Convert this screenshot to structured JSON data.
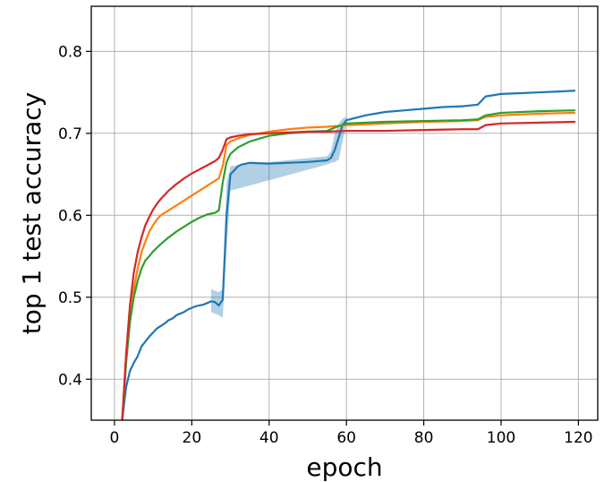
{
  "chart_data": {
    "type": "line",
    "title": "",
    "xlabel": "epoch",
    "ylabel": "top 1 test accuracy",
    "xlim": [
      -6,
      125
    ],
    "ylim": [
      0.35,
      0.855
    ],
    "xticks": [
      0,
      20,
      40,
      60,
      80,
      100,
      120
    ],
    "yticks": [
      0.4,
      0.5,
      0.6,
      0.7,
      0.8
    ],
    "xtick_labels": [
      "0",
      "20",
      "40",
      "60",
      "80",
      "100",
      "120"
    ],
    "ytick_labels": [
      "0.4",
      "0.5",
      "0.6",
      "0.7",
      "0.8"
    ],
    "grid": true,
    "legend": "none",
    "series": [
      {
        "color": "#1f77b4",
        "band": [
          [
            25,
            0.482,
            0.51
          ],
          [
            26,
            0.48,
            0.508
          ],
          [
            27,
            0.478,
            0.506
          ],
          [
            28,
            0.475,
            0.51
          ],
          [
            29,
            0.56,
            0.64
          ],
          [
            30,
            0.63,
            0.66
          ],
          [
            55,
            0.662,
            0.672
          ],
          [
            56,
            0.664,
            0.678
          ],
          [
            57,
            0.665,
            0.7
          ],
          [
            58,
            0.668,
            0.712
          ],
          [
            59,
            0.69,
            0.718
          ],
          [
            60,
            0.712,
            0.72
          ]
        ],
        "points": [
          [
            2,
            0.35
          ],
          [
            3,
            0.39
          ],
          [
            4,
            0.41
          ],
          [
            5,
            0.42
          ],
          [
            6,
            0.428
          ],
          [
            7,
            0.44
          ],
          [
            8,
            0.446
          ],
          [
            9,
            0.452
          ],
          [
            10,
            0.457
          ],
          [
            11,
            0.462
          ],
          [
            12,
            0.465
          ],
          [
            13,
            0.468
          ],
          [
            14,
            0.472
          ],
          [
            15,
            0.474
          ],
          [
            16,
            0.478
          ],
          [
            17,
            0.48
          ],
          [
            18,
            0.482
          ],
          [
            19,
            0.485
          ],
          [
            20,
            0.487
          ],
          [
            21,
            0.489
          ],
          [
            22,
            0.49
          ],
          [
            23,
            0.491
          ],
          [
            24,
            0.493
          ],
          [
            25,
            0.495
          ],
          [
            26,
            0.494
          ],
          [
            27,
            0.49
          ],
          [
            28,
            0.497
          ],
          [
            29,
            0.6
          ],
          [
            30,
            0.65
          ],
          [
            31,
            0.655
          ],
          [
            32,
            0.66
          ],
          [
            33,
            0.662
          ],
          [
            35,
            0.664
          ],
          [
            40,
            0.663
          ],
          [
            45,
            0.664
          ],
          [
            50,
            0.665
          ],
          [
            55,
            0.667
          ],
          [
            56,
            0.67
          ],
          [
            57,
            0.68
          ],
          [
            58,
            0.695
          ],
          [
            59,
            0.71
          ],
          [
            60,
            0.716
          ],
          [
            65,
            0.722
          ],
          [
            70,
            0.726
          ],
          [
            75,
            0.728
          ],
          [
            80,
            0.73
          ],
          [
            85,
            0.732
          ],
          [
            90,
            0.733
          ],
          [
            94,
            0.735
          ],
          [
            96,
            0.745
          ],
          [
            100,
            0.748
          ],
          [
            105,
            0.749
          ],
          [
            110,
            0.75
          ],
          [
            115,
            0.751
          ],
          [
            119,
            0.752
          ]
        ]
      },
      {
        "color": "#ff7f0e",
        "band": [],
        "points": [
          [
            2,
            0.35
          ],
          [
            3,
            0.42
          ],
          [
            4,
            0.47
          ],
          [
            5,
            0.51
          ],
          [
            6,
            0.535
          ],
          [
            7,
            0.555
          ],
          [
            8,
            0.568
          ],
          [
            9,
            0.58
          ],
          [
            10,
            0.588
          ],
          [
            11,
            0.595
          ],
          [
            12,
            0.6
          ],
          [
            14,
            0.606
          ],
          [
            16,
            0.612
          ],
          [
            18,
            0.618
          ],
          [
            20,
            0.624
          ],
          [
            22,
            0.63
          ],
          [
            24,
            0.636
          ],
          [
            26,
            0.642
          ],
          [
            27,
            0.645
          ],
          [
            28,
            0.66
          ],
          [
            29,
            0.686
          ],
          [
            30,
            0.69
          ],
          [
            32,
            0.694
          ],
          [
            35,
            0.698
          ],
          [
            40,
            0.702
          ],
          [
            45,
            0.705
          ],
          [
            50,
            0.707
          ],
          [
            55,
            0.708
          ],
          [
            60,
            0.71
          ],
          [
            70,
            0.712
          ],
          [
            80,
            0.714
          ],
          [
            90,
            0.715
          ],
          [
            94,
            0.716
          ],
          [
            96,
            0.72
          ],
          [
            100,
            0.722
          ],
          [
            110,
            0.724
          ],
          [
            119,
            0.725
          ]
        ]
      },
      {
        "color": "#2ca02c",
        "band": [],
        "points": [
          [
            2,
            0.35
          ],
          [
            3,
            0.42
          ],
          [
            4,
            0.47
          ],
          [
            5,
            0.5
          ],
          [
            6,
            0.52
          ],
          [
            7,
            0.535
          ],
          [
            8,
            0.545
          ],
          [
            9,
            0.55
          ],
          [
            10,
            0.556
          ],
          [
            12,
            0.565
          ],
          [
            14,
            0.573
          ],
          [
            16,
            0.58
          ],
          [
            18,
            0.586
          ],
          [
            20,
            0.592
          ],
          [
            22,
            0.597
          ],
          [
            24,
            0.601
          ],
          [
            26,
            0.603
          ],
          [
            27,
            0.606
          ],
          [
            28,
            0.64
          ],
          [
            29,
            0.665
          ],
          [
            30,
            0.675
          ],
          [
            32,
            0.683
          ],
          [
            35,
            0.69
          ],
          [
            40,
            0.697
          ],
          [
            45,
            0.7
          ],
          [
            50,
            0.702
          ],
          [
            55,
            0.703
          ],
          [
            57,
            0.707
          ],
          [
            60,
            0.712
          ],
          [
            70,
            0.714
          ],
          [
            80,
            0.715
          ],
          [
            90,
            0.716
          ],
          [
            94,
            0.717
          ],
          [
            96,
            0.722
          ],
          [
            100,
            0.725
          ],
          [
            110,
            0.727
          ],
          [
            119,
            0.728
          ]
        ]
      },
      {
        "color": "#d62728",
        "band": [],
        "points": [
          [
            2,
            0.35
          ],
          [
            3,
            0.43
          ],
          [
            4,
            0.49
          ],
          [
            5,
            0.53
          ],
          [
            6,
            0.555
          ],
          [
            7,
            0.573
          ],
          [
            8,
            0.588
          ],
          [
            9,
            0.598
          ],
          [
            10,
            0.607
          ],
          [
            11,
            0.614
          ],
          [
            12,
            0.62
          ],
          [
            14,
            0.63
          ],
          [
            16,
            0.638
          ],
          [
            18,
            0.645
          ],
          [
            20,
            0.651
          ],
          [
            22,
            0.656
          ],
          [
            24,
            0.661
          ],
          [
            26,
            0.666
          ],
          [
            27,
            0.67
          ],
          [
            28,
            0.68
          ],
          [
            29,
            0.693
          ],
          [
            30,
            0.695
          ],
          [
            32,
            0.697
          ],
          [
            35,
            0.699
          ],
          [
            40,
            0.7
          ],
          [
            45,
            0.701
          ],
          [
            50,
            0.702
          ],
          [
            55,
            0.702
          ],
          [
            60,
            0.703
          ],
          [
            70,
            0.703
          ],
          [
            80,
            0.704
          ],
          [
            90,
            0.705
          ],
          [
            94,
            0.705
          ],
          [
            96,
            0.71
          ],
          [
            100,
            0.712
          ],
          [
            110,
            0.713
          ],
          [
            119,
            0.714
          ]
        ]
      }
    ]
  }
}
